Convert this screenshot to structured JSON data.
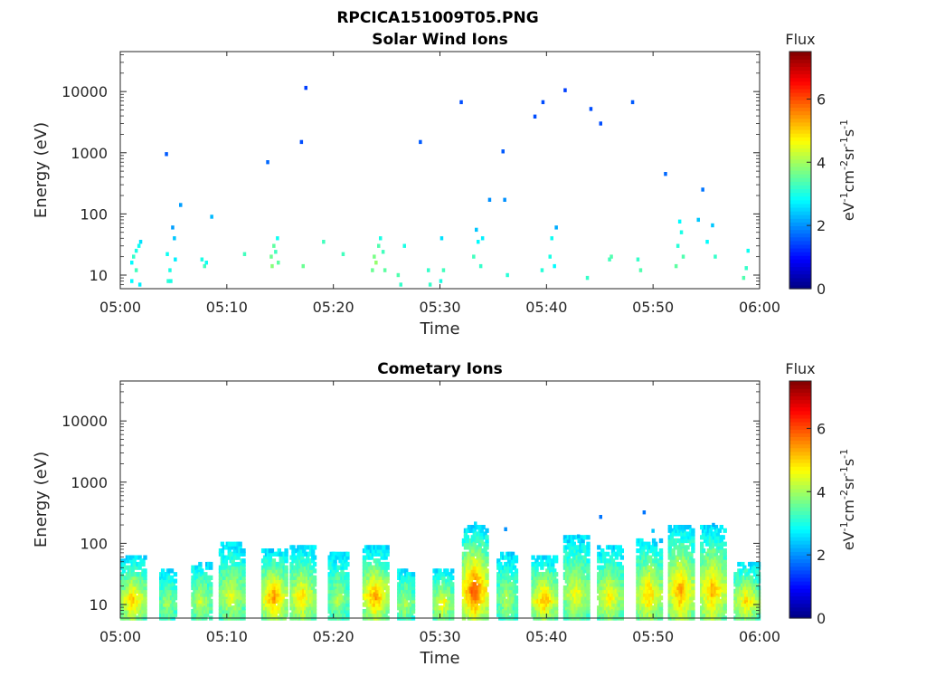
{
  "figure": {
    "title": "RPCICA151009T05.PNG"
  },
  "colorbar": {
    "title": "Flux",
    "unit_parts": [
      "eV",
      "-1",
      "cm",
      "-2",
      "sr",
      "-1",
      "s",
      "-1"
    ],
    "ticks": [
      "0",
      "2",
      "4",
      "6"
    ],
    "range": [
      0,
      7.5
    ],
    "colormap": "jet"
  },
  "chart_data": [
    {
      "type": "heatmap",
      "title": "Solar Wind Ions",
      "xlabel": "Time",
      "ylabel": "Energy (eV)",
      "x_range": [
        "05:00",
        "06:00"
      ],
      "x_ticks": [
        "05:00",
        "05:10",
        "05:20",
        "05:30",
        "05:40",
        "05:50",
        "06:00"
      ],
      "y_scale": "log",
      "ylim": [
        6,
        45000
      ],
      "y_ticks": [
        "10",
        "100",
        "1000",
        "10000"
      ],
      "y_tick_values": [
        10,
        100,
        1000,
        10000
      ],
      "cells": [
        [
          "05:01:05",
          8,
          2.8
        ],
        [
          "05:01:05",
          16,
          2.8
        ],
        [
          "05:01:15",
          20,
          3.2
        ],
        [
          "05:01:30",
          25,
          3.0
        ],
        [
          "05:01:45",
          30,
          2.9
        ],
        [
          "05:01:55",
          35,
          2.6
        ],
        [
          "05:01:30",
          12,
          3.3
        ],
        [
          "05:01:50",
          7,
          2.7
        ],
        [
          "05:04:20",
          950,
          1.6
        ],
        [
          "05:04:25",
          22,
          2.9
        ],
        [
          "05:04:30",
          8,
          3.1
        ],
        [
          "05:04:40",
          12,
          3.0
        ],
        [
          "05:04:45",
          8,
          3.0
        ],
        [
          "05:04:55",
          60,
          2.1
        ],
        [
          "05:05:05",
          40,
          2.4
        ],
        [
          "05:05:10",
          18,
          2.7
        ],
        [
          "05:05:40",
          140,
          2.1
        ],
        [
          "05:07:40",
          18,
          3.0
        ],
        [
          "05:07:55",
          14,
          3.3
        ],
        [
          "05:08:05",
          16,
          2.9
        ],
        [
          "05:08:35",
          90,
          2.3
        ],
        [
          "05:11:40",
          22,
          3.3
        ],
        [
          "05:13:50",
          700,
          1.7
        ],
        [
          "05:14:10",
          20,
          3.6
        ],
        [
          "05:14:15",
          14,
          3.8
        ],
        [
          "05:14:25",
          30,
          3.5
        ],
        [
          "05:14:35",
          24,
          3.3
        ],
        [
          "05:14:45",
          40,
          2.9
        ],
        [
          "05:14:50",
          16,
          3.5
        ],
        [
          "05:17:00",
          1500,
          1.5
        ],
        [
          "05:17:10",
          14,
          3.6
        ],
        [
          "05:17:25",
          11500,
          1.4
        ],
        [
          "05:19:05",
          35,
          3.3
        ],
        [
          "05:20:55",
          22,
          3.3
        ],
        [
          "05:23:40",
          12,
          3.6
        ],
        [
          "05:23:50",
          20,
          3.7
        ],
        [
          "05:24:00",
          16,
          3.9
        ],
        [
          "05:24:15",
          30,
          3.4
        ],
        [
          "05:24:25",
          40,
          3.0
        ],
        [
          "05:24:40",
          24,
          3.3
        ],
        [
          "05:24:50",
          12,
          3.5
        ],
        [
          "05:26:40",
          30,
          3.0
        ],
        [
          "05:26:05",
          10,
          3.4
        ],
        [
          "05:26:20",
          7,
          3.2
        ],
        [
          "05:28:10",
          1500,
          1.6
        ],
        [
          "05:28:55",
          12,
          3.2
        ],
        [
          "05:29:05",
          7,
          3.2
        ],
        [
          "05:30:05",
          8,
          3.0
        ],
        [
          "05:30:20",
          12,
          3.3
        ],
        [
          "05:30:10",
          40,
          2.6
        ],
        [
          "05:32:00",
          6700,
          1.5
        ],
        [
          "05:33:10",
          20,
          3.3
        ],
        [
          "05:33:25",
          55,
          2.4
        ],
        [
          "05:33:35",
          35,
          2.8
        ],
        [
          "05:33:50",
          14,
          3.2
        ],
        [
          "05:34:00",
          40,
          2.7
        ],
        [
          "05:34:40",
          170,
          2.0
        ],
        [
          "05:35:55",
          1050,
          1.6
        ],
        [
          "05:36:05",
          170,
          2.0
        ],
        [
          "05:36:20",
          10,
          3.1
        ],
        [
          "05:38:55",
          3900,
          1.5
        ],
        [
          "05:39:35",
          12,
          3.1
        ],
        [
          "05:39:40",
          6700,
          1.5
        ],
        [
          "05:40:20",
          20,
          3.0
        ],
        [
          "05:40:30",
          40,
          2.9
        ],
        [
          "05:40:45",
          14,
          2.8
        ],
        [
          "05:40:55",
          60,
          2.2
        ],
        [
          "05:41:45",
          10500,
          1.4
        ],
        [
          "05:43:50",
          9,
          3.2
        ],
        [
          "05:44:10",
          5200,
          1.5
        ],
        [
          "05:45:05",
          3000,
          1.5
        ],
        [
          "05:45:55",
          18,
          3.3
        ],
        [
          "05:46:05",
          20,
          3.4
        ],
        [
          "05:48:05",
          6700,
          1.6
        ],
        [
          "05:48:35",
          18,
          3.2
        ],
        [
          "05:48:50",
          12,
          3.4
        ],
        [
          "05:51:10",
          450,
          1.7
        ],
        [
          "05:52:10",
          14,
          3.5
        ],
        [
          "05:52:20",
          30,
          3.1
        ],
        [
          "05:52:30",
          75,
          2.8
        ],
        [
          "05:52:40",
          50,
          3.0
        ],
        [
          "05:52:50",
          20,
          3.4
        ],
        [
          "05:54:15",
          80,
          2.4
        ],
        [
          "05:54:40",
          250,
          1.8
        ],
        [
          "05:55:05",
          35,
          2.8
        ],
        [
          "05:55:35",
          65,
          2.4
        ],
        [
          "05:55:50",
          20,
          3.2
        ],
        [
          "05:58:30",
          9,
          3.4
        ],
        [
          "05:58:45",
          13,
          3.2
        ],
        [
          "05:58:55",
          25,
          2.9
        ]
      ]
    },
    {
      "type": "heatmap",
      "title": "Cometary Ions",
      "xlabel": "Time",
      "ylabel": "Energy (eV)",
      "x_range": [
        "05:00",
        "06:00"
      ],
      "x_ticks": [
        "05:00",
        "05:10",
        "05:20",
        "05:30",
        "05:40",
        "05:50",
        "06:00"
      ],
      "y_scale": "log",
      "ylim": [
        6,
        45000
      ],
      "y_ticks": [
        "10",
        "100",
        "1000",
        "10000"
      ],
      "y_tick_values": [
        10,
        100,
        1000,
        10000
      ],
      "bursts": [
        {
          "time": "05:01:15",
          "width_s": 130,
          "top_ev": 60,
          "peak": 5.2
        },
        {
          "time": "05:04:30",
          "width_s": 80,
          "top_ev": 40,
          "peak": 4.1
        },
        {
          "time": "05:07:40",
          "width_s": 100,
          "top_ev": 50,
          "peak": 4.4
        },
        {
          "time": "05:10:30",
          "width_s": 130,
          "top_ev": 100,
          "peak": 4.6
        },
        {
          "time": "05:14:30",
          "width_s": 130,
          "top_ev": 80,
          "peak": 5.6
        },
        {
          "time": "05:17:10",
          "width_s": 130,
          "top_ev": 90,
          "peak": 5.0
        },
        {
          "time": "05:20:30",
          "width_s": 100,
          "top_ev": 70,
          "peak": 4.2
        },
        {
          "time": "05:24:00",
          "width_s": 130,
          "top_ev": 90,
          "peak": 5.5
        },
        {
          "time": "05:26:50",
          "width_s": 80,
          "top_ev": 40,
          "peak": 4.3
        },
        {
          "time": "05:30:20",
          "width_s": 100,
          "top_ev": 40,
          "peak": 4.8
        },
        {
          "time": "05:33:20",
          "width_s": 130,
          "top_ev": 200,
          "peak": 6.1
        },
        {
          "time": "05:36:20",
          "width_s": 100,
          "top_ev": 70,
          "peak": 4.2
        },
        {
          "time": "05:39:50",
          "width_s": 130,
          "top_ev": 60,
          "peak": 5.4
        },
        {
          "time": "05:42:50",
          "width_s": 130,
          "top_ev": 130,
          "peak": 4.7
        },
        {
          "time": "05:46:00",
          "width_s": 130,
          "top_ev": 90,
          "peak": 4.9
        },
        {
          "time": "05:49:40",
          "width_s": 130,
          "top_ev": 120,
          "peak": 5.2
        },
        {
          "time": "05:52:40",
          "width_s": 130,
          "top_ev": 200,
          "peak": 5.5
        },
        {
          "time": "05:55:40",
          "width_s": 130,
          "top_ev": 190,
          "peak": 5.4
        },
        {
          "time": "05:58:50",
          "width_s": 130,
          "top_ev": 50,
          "peak": 5.0
        }
      ],
      "cells": [
        [
          "05:36:10",
          170,
          2.0
        ],
        [
          "05:45:05",
          270,
          1.8
        ],
        [
          "05:49:10",
          320,
          1.8
        ],
        [
          "05:55:40",
          200,
          2.2
        ],
        [
          "05:33:20",
          210,
          2.6
        ],
        [
          "05:52:30",
          180,
          2.5
        ],
        [
          "05:50:00",
          160,
          2.4
        ],
        [
          "05:43:00",
          130,
          2.3
        ]
      ]
    }
  ]
}
